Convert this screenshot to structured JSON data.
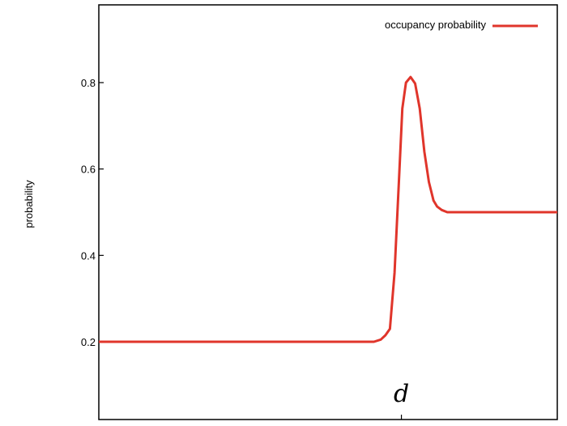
{
  "chart_data": {
    "type": "line",
    "title": "",
    "xlabel": "",
    "ylabel": "probability",
    "ylim": [
      0.02,
      0.98
    ],
    "xlim": [
      0,
      100
    ],
    "yticks": [
      0.2,
      0.4,
      0.6,
      0.8
    ],
    "ytick_labels": [
      "0.2",
      "0.4",
      "0.6",
      "0.8"
    ],
    "xticks": [
      66
    ],
    "xtick_labels": [
      "d"
    ],
    "grid": false,
    "legend": {
      "placement": "top-right",
      "entries": [
        "occupancy probability"
      ]
    },
    "series": [
      {
        "name": "occupancy probability",
        "color": "#e0352b",
        "x": [
          0,
          30,
          50,
          60,
          61.5,
          62.5,
          63.5,
          64.5,
          65.5,
          66.2,
          67,
          68,
          69,
          70,
          71,
          72,
          73,
          73.8,
          74.8,
          76,
          78,
          80,
          90,
          100
        ],
        "y": [
          0.2,
          0.2,
          0.2,
          0.2,
          0.205,
          0.215,
          0.23,
          0.36,
          0.58,
          0.74,
          0.8,
          0.813,
          0.798,
          0.74,
          0.64,
          0.57,
          0.527,
          0.513,
          0.505,
          0.5,
          0.5,
          0.5,
          0.5,
          0.5
        ]
      }
    ]
  },
  "margin_glyph": ")",
  "colors": {
    "line": "#e0352b",
    "axis": "#000000",
    "background": "#ffffff"
  }
}
